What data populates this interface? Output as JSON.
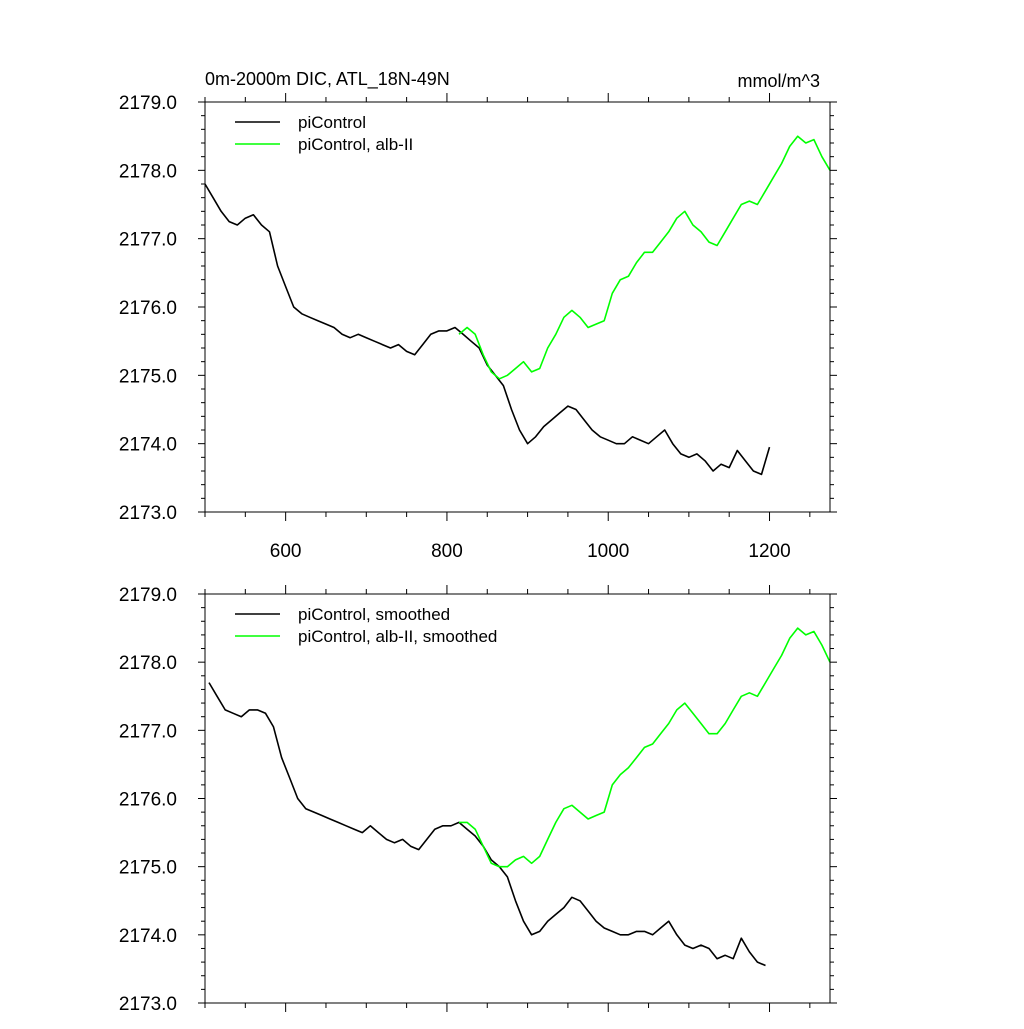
{
  "chart_data": [
    {
      "type": "line",
      "title": "0m-2000m DIC, ATL_18N-49N",
      "units": "mmol/m^3",
      "xlim": [
        500,
        1275
      ],
      "ylim": [
        2173.0,
        2179.0
      ],
      "x_ticks": [
        600,
        800,
        1000,
        1200
      ],
      "x_tick_labels": [
        "600",
        "800",
        "1000",
        "1200"
      ],
      "y_ticks": [
        2173.0,
        2174.0,
        2175.0,
        2176.0,
        2177.0,
        2178.0,
        2179.0
      ],
      "y_tick_labels": [
        "2173.0",
        "2174.0",
        "2175.0",
        "2176.0",
        "2177.0",
        "2178.0",
        "2179.0"
      ],
      "legend_position": "top-left",
      "grid": false,
      "series": [
        {
          "name": "piControl",
          "color": "#000000",
          "x": [
            500,
            510,
            520,
            530,
            540,
            550,
            560,
            570,
            580,
            590,
            600,
            610,
            620,
            630,
            640,
            650,
            660,
            670,
            680,
            690,
            700,
            710,
            720,
            730,
            740,
            750,
            760,
            770,
            780,
            790,
            800,
            810,
            820,
            830,
            840,
            850,
            860,
            870,
            880,
            890,
            900,
            910,
            920,
            930,
            940,
            950,
            960,
            970,
            980,
            990,
            1000,
            1010,
            1020,
            1030,
            1040,
            1050,
            1060,
            1070,
            1080,
            1090,
            1100,
            1110,
            1120,
            1130,
            1140,
            1150,
            1160,
            1170,
            1180,
            1190,
            1200
          ],
          "y": [
            2177.8,
            2177.6,
            2177.4,
            2177.25,
            2177.2,
            2177.3,
            2177.35,
            2177.2,
            2177.1,
            2176.6,
            2176.3,
            2176.0,
            2175.9,
            2175.85,
            2175.8,
            2175.75,
            2175.7,
            2175.6,
            2175.55,
            2175.6,
            2175.55,
            2175.5,
            2175.45,
            2175.4,
            2175.45,
            2175.35,
            2175.3,
            2175.45,
            2175.6,
            2175.65,
            2175.65,
            2175.7,
            2175.6,
            2175.5,
            2175.4,
            2175.15,
            2175.0,
            2174.85,
            2174.5,
            2174.2,
            2174.0,
            2174.1,
            2174.25,
            2174.35,
            2174.45,
            2174.55,
            2174.5,
            2174.35,
            2174.2,
            2174.1,
            2174.05,
            2174.0,
            2174.0,
            2174.1,
            2174.05,
            2174.0,
            2174.1,
            2174.2,
            2174.0,
            2173.85,
            2173.8,
            2173.85,
            2173.75,
            2173.6,
            2173.7,
            2173.65,
            2173.9,
            2173.75,
            2173.6,
            2173.55,
            2173.95
          ]
        },
        {
          "name": "piControl, alb-II",
          "color": "#00ff00",
          "x": [
            815,
            825,
            835,
            845,
            855,
            865,
            875,
            885,
            895,
            905,
            915,
            925,
            935,
            945,
            955,
            965,
            975,
            985,
            995,
            1005,
            1015,
            1025,
            1035,
            1045,
            1055,
            1065,
            1075,
            1085,
            1095,
            1105,
            1115,
            1125,
            1135,
            1145,
            1155,
            1165,
            1175,
            1185,
            1195,
            1205,
            1215,
            1225,
            1235,
            1245,
            1255,
            1265,
            1275
          ],
          "y": [
            2175.6,
            2175.7,
            2175.6,
            2175.3,
            2175.05,
            2174.95,
            2175.0,
            2175.1,
            2175.2,
            2175.05,
            2175.1,
            2175.4,
            2175.6,
            2175.85,
            2175.95,
            2175.85,
            2175.7,
            2175.75,
            2175.8,
            2176.2,
            2176.4,
            2176.45,
            2176.65,
            2176.8,
            2176.8,
            2176.95,
            2177.1,
            2177.3,
            2177.4,
            2177.2,
            2177.1,
            2176.95,
            2176.9,
            2177.1,
            2177.3,
            2177.5,
            2177.55,
            2177.5,
            2177.7,
            2177.9,
            2178.1,
            2178.35,
            2178.5,
            2178.4,
            2178.45,
            2178.2,
            2178.0
          ]
        }
      ]
    },
    {
      "type": "line",
      "title": "",
      "units": "",
      "xlim": [
        500,
        1275
      ],
      "ylim": [
        2173.0,
        2179.0
      ],
      "x_ticks": [
        600,
        800,
        1000,
        1200
      ],
      "x_tick_labels": [],
      "y_ticks": [
        2173.0,
        2174.0,
        2175.0,
        2176.0,
        2177.0,
        2178.0,
        2179.0
      ],
      "y_tick_labels": [
        "2173.0",
        "2174.0",
        "2175.0",
        "2176.0",
        "2177.0",
        "2178.0",
        "2179.0"
      ],
      "legend_position": "top-left",
      "grid": false,
      "series": [
        {
          "name": "piControl, smoothed",
          "color": "#000000",
          "x": [
            505,
            515,
            525,
            535,
            545,
            555,
            565,
            575,
            585,
            595,
            605,
            615,
            625,
            635,
            645,
            655,
            665,
            675,
            685,
            695,
            705,
            715,
            725,
            735,
            745,
            755,
            765,
            775,
            785,
            795,
            805,
            815,
            825,
            835,
            845,
            855,
            865,
            875,
            885,
            895,
            905,
            915,
            925,
            935,
            945,
            955,
            965,
            975,
            985,
            995,
            1005,
            1015,
            1025,
            1035,
            1045,
            1055,
            1065,
            1075,
            1085,
            1095,
            1105,
            1115,
            1125,
            1135,
            1145,
            1155,
            1165,
            1175,
            1185,
            1195
          ],
          "y": [
            2177.7,
            2177.5,
            2177.3,
            2177.25,
            2177.2,
            2177.3,
            2177.3,
            2177.25,
            2177.05,
            2176.6,
            2176.3,
            2176.0,
            2175.85,
            2175.8,
            2175.75,
            2175.7,
            2175.65,
            2175.6,
            2175.55,
            2175.5,
            2175.6,
            2175.5,
            2175.4,
            2175.35,
            2175.4,
            2175.3,
            2175.25,
            2175.4,
            2175.55,
            2175.6,
            2175.6,
            2175.65,
            2175.55,
            2175.45,
            2175.3,
            2175.1,
            2175.0,
            2174.85,
            2174.5,
            2174.2,
            2174.0,
            2174.05,
            2174.2,
            2174.3,
            2174.4,
            2174.55,
            2174.5,
            2174.35,
            2174.2,
            2174.1,
            2174.05,
            2174.0,
            2174.0,
            2174.05,
            2174.05,
            2174.0,
            2174.1,
            2174.2,
            2174.0,
            2173.85,
            2173.8,
            2173.85,
            2173.8,
            2173.65,
            2173.7,
            2173.65,
            2173.95,
            2173.75,
            2173.6,
            2173.55
          ]
        },
        {
          "name": "piControl, alb-II, smoothed",
          "color": "#00ff00",
          "x": [
            815,
            825,
            835,
            845,
            855,
            865,
            875,
            885,
            895,
            905,
            915,
            925,
            935,
            945,
            955,
            965,
            975,
            985,
            995,
            1005,
            1015,
            1025,
            1035,
            1045,
            1055,
            1065,
            1075,
            1085,
            1095,
            1105,
            1115,
            1125,
            1135,
            1145,
            1155,
            1165,
            1175,
            1185,
            1195,
            1205,
            1215,
            1225,
            1235,
            1245,
            1255,
            1265,
            1275
          ],
          "y": [
            2175.65,
            2175.65,
            2175.55,
            2175.3,
            2175.05,
            2175.0,
            2175.0,
            2175.1,
            2175.15,
            2175.05,
            2175.15,
            2175.4,
            2175.65,
            2175.85,
            2175.9,
            2175.8,
            2175.7,
            2175.75,
            2175.8,
            2176.2,
            2176.35,
            2176.45,
            2176.6,
            2176.75,
            2176.8,
            2176.95,
            2177.1,
            2177.3,
            2177.4,
            2177.25,
            2177.1,
            2176.95,
            2176.95,
            2177.1,
            2177.3,
            2177.5,
            2177.55,
            2177.5,
            2177.7,
            2177.9,
            2178.1,
            2178.35,
            2178.5,
            2178.4,
            2178.45,
            2178.25,
            2178.0
          ]
        }
      ]
    }
  ]
}
